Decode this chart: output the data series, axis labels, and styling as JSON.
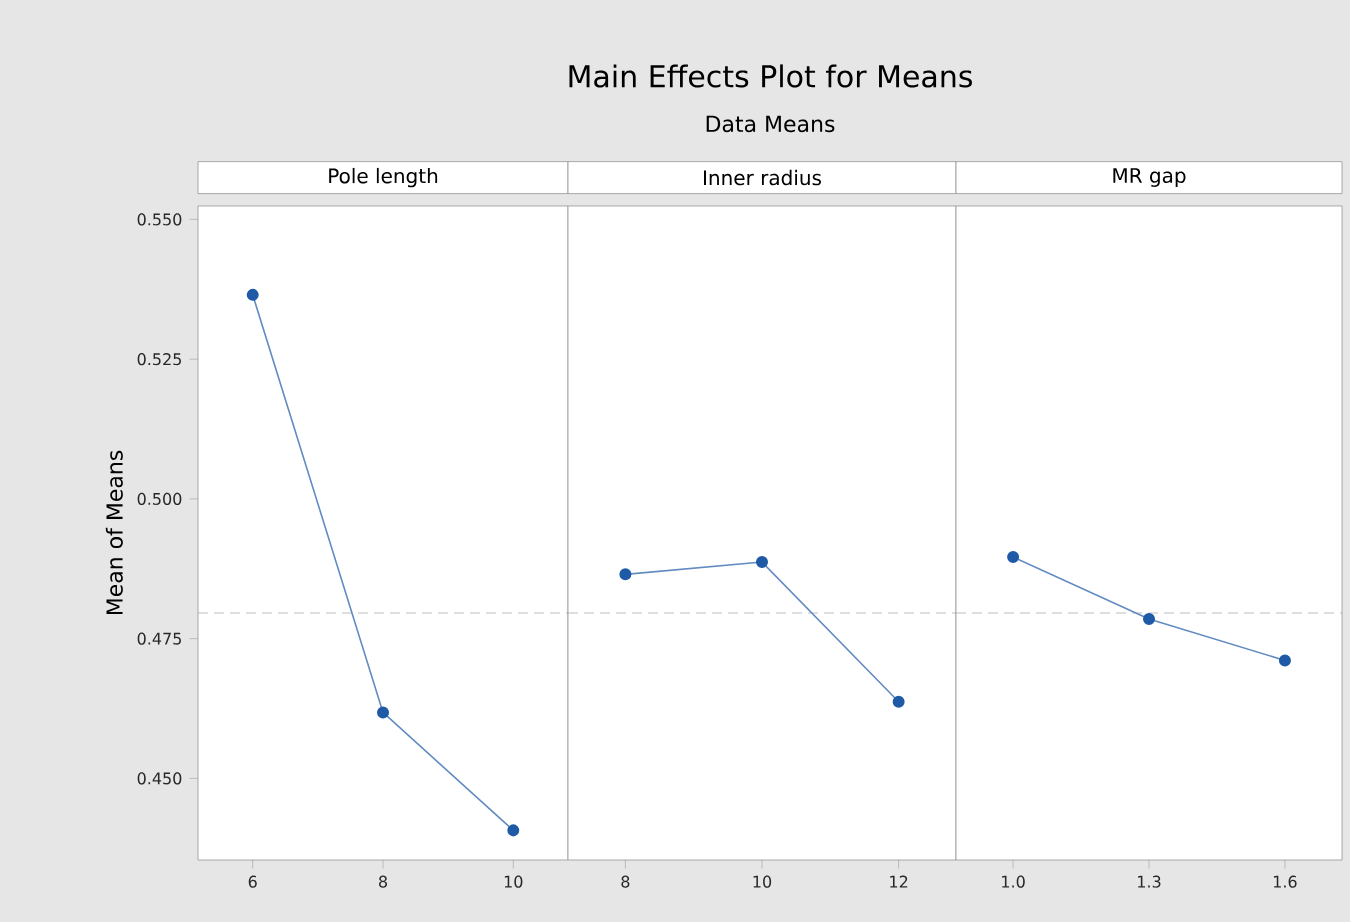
{
  "chart_data": [
    {
      "type": "line",
      "title": "Pole length",
      "ylabel": "Mean of Means",
      "annotations": [
        "Main Effects Plot for Means",
        "Data Means"
      ],
      "categories": [
        "6",
        "8",
        "10"
      ],
      "values": [
        0.5365,
        0.4618,
        0.4407
      ],
      "color": "#1f5aa6",
      "marker": "circle",
      "ylim": [
        0.4354,
        0.5524
      ],
      "yticks": [
        {
          "value": 0.45,
          "label": "0.450"
        },
        {
          "value": 0.475,
          "label": "0.475"
        },
        {
          "value": 0.5,
          "label": "0.500"
        },
        {
          "value": 0.525,
          "label": "0.525"
        },
        {
          "value": 0.55,
          "label": "0.550"
        }
      ],
      "ref_lines": [
        {
          "axis": "y",
          "value": 0.4796,
          "color": "#a0a0a0",
          "line_style": "dashed"
        }
      ]
    },
    {
      "type": "line",
      "title": "Inner radius",
      "categories": [
        "8",
        "10",
        "12"
      ],
      "values": [
        0.4865,
        0.4887,
        0.4637
      ],
      "color": "#1f5aa6",
      "marker": "circle",
      "ylim": [
        0.4354,
        0.5524
      ],
      "tick_labels": "x",
      "ref_lines": [
        {
          "axis": "y",
          "value": 0.4796,
          "color": "#a0a0a0",
          "line_style": "dashed"
        }
      ]
    },
    {
      "type": "line",
      "title": "MR gap",
      "categories": [
        "1.0",
        "1.3",
        "1.6"
      ],
      "values": [
        0.4896,
        0.4785,
        0.4711
      ],
      "color": "#1f5aa6",
      "marker": "circle",
      "ylim": [
        0.4354,
        0.5524
      ],
      "tick_labels": "x",
      "ref_lines": [
        {
          "axis": "y",
          "value": 0.4796,
          "color": "#a0a0a0",
          "line_style": "dashed"
        }
      ]
    }
  ]
}
